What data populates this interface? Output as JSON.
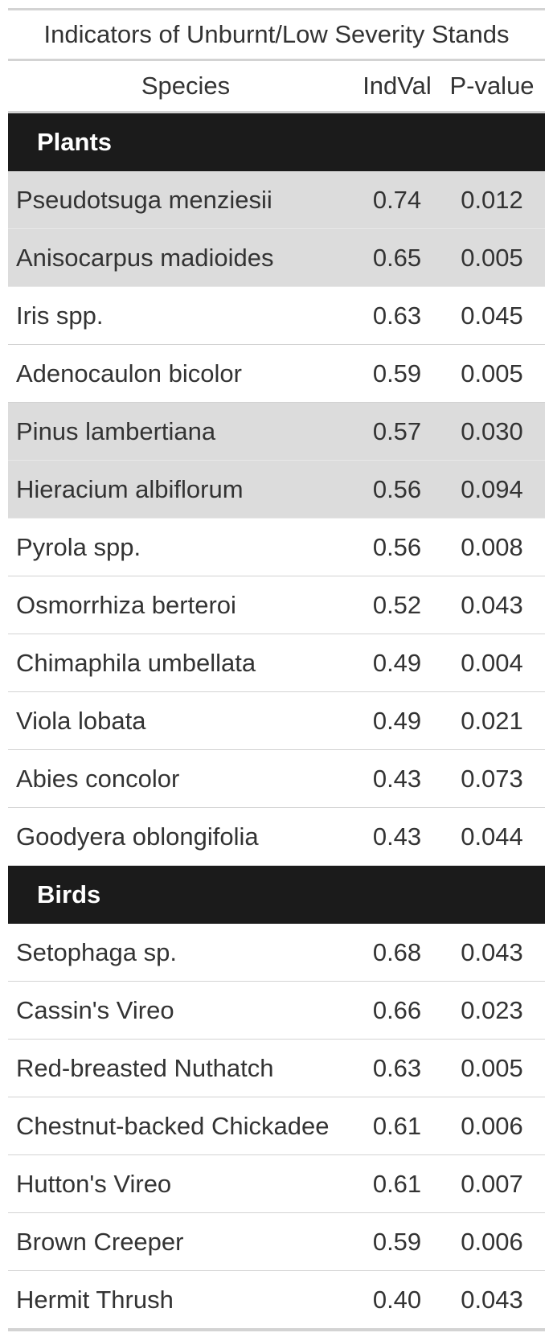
{
  "table": {
    "title": "Indicators of Unburnt/Low Severity Stands",
    "columns": {
      "species": "Species",
      "indval": "IndVal",
      "pvalue": "P-value"
    },
    "groups": [
      {
        "label": "Plants",
        "rows": [
          {
            "species": "Pseudotsuga menziesii",
            "indval": "0.74",
            "pvalue": "0.012",
            "shaded": true
          },
          {
            "species": "Anisocarpus madioides",
            "indval": "0.65",
            "pvalue": "0.005",
            "shaded": true
          },
          {
            "species": "Iris spp.",
            "indval": "0.63",
            "pvalue": "0.045",
            "shaded": false
          },
          {
            "species": "Adenocaulon bicolor",
            "indval": "0.59",
            "pvalue": "0.005",
            "shaded": false
          },
          {
            "species": "Pinus lambertiana",
            "indval": "0.57",
            "pvalue": "0.030",
            "shaded": true
          },
          {
            "species": "Hieracium albiflorum",
            "indval": "0.56",
            "pvalue": "0.094",
            "shaded": true
          },
          {
            "species": "Pyrola spp.",
            "indval": "0.56",
            "pvalue": "0.008",
            "shaded": false
          },
          {
            "species": "Osmorrhiza berteroi",
            "indval": "0.52",
            "pvalue": "0.043",
            "shaded": false
          },
          {
            "species": "Chimaphila umbellata",
            "indval": "0.49",
            "pvalue": "0.004",
            "shaded": false
          },
          {
            "species": "Viola lobata",
            "indval": "0.49",
            "pvalue": "0.021",
            "shaded": false
          },
          {
            "species": "Abies concolor",
            "indval": "0.43",
            "pvalue": "0.073",
            "shaded": false
          },
          {
            "species": "Goodyera oblongifolia",
            "indval": "0.43",
            "pvalue": "0.044",
            "shaded": false
          }
        ]
      },
      {
        "label": "Birds",
        "rows": [
          {
            "species": "Setophaga sp.",
            "indval": "0.68",
            "pvalue": "0.043",
            "shaded": false
          },
          {
            "species": "Cassin's Vireo",
            "indval": "0.66",
            "pvalue": "0.023",
            "shaded": false
          },
          {
            "species": "Red-breasted Nuthatch",
            "indval": "0.63",
            "pvalue": "0.005",
            "shaded": false
          },
          {
            "species": "Chestnut-backed Chickadee",
            "indval": "0.61",
            "pvalue": "0.006",
            "shaded": false
          },
          {
            "species": "Hutton's Vireo",
            "indval": "0.61",
            "pvalue": "0.007",
            "shaded": false
          },
          {
            "species": "Brown Creeper",
            "indval": "0.59",
            "pvalue": "0.006",
            "shaded": false
          },
          {
            "species": "Hermit Thrush",
            "indval": "0.40",
            "pvalue": "0.043",
            "shaded": false
          }
        ]
      }
    ]
  }
}
